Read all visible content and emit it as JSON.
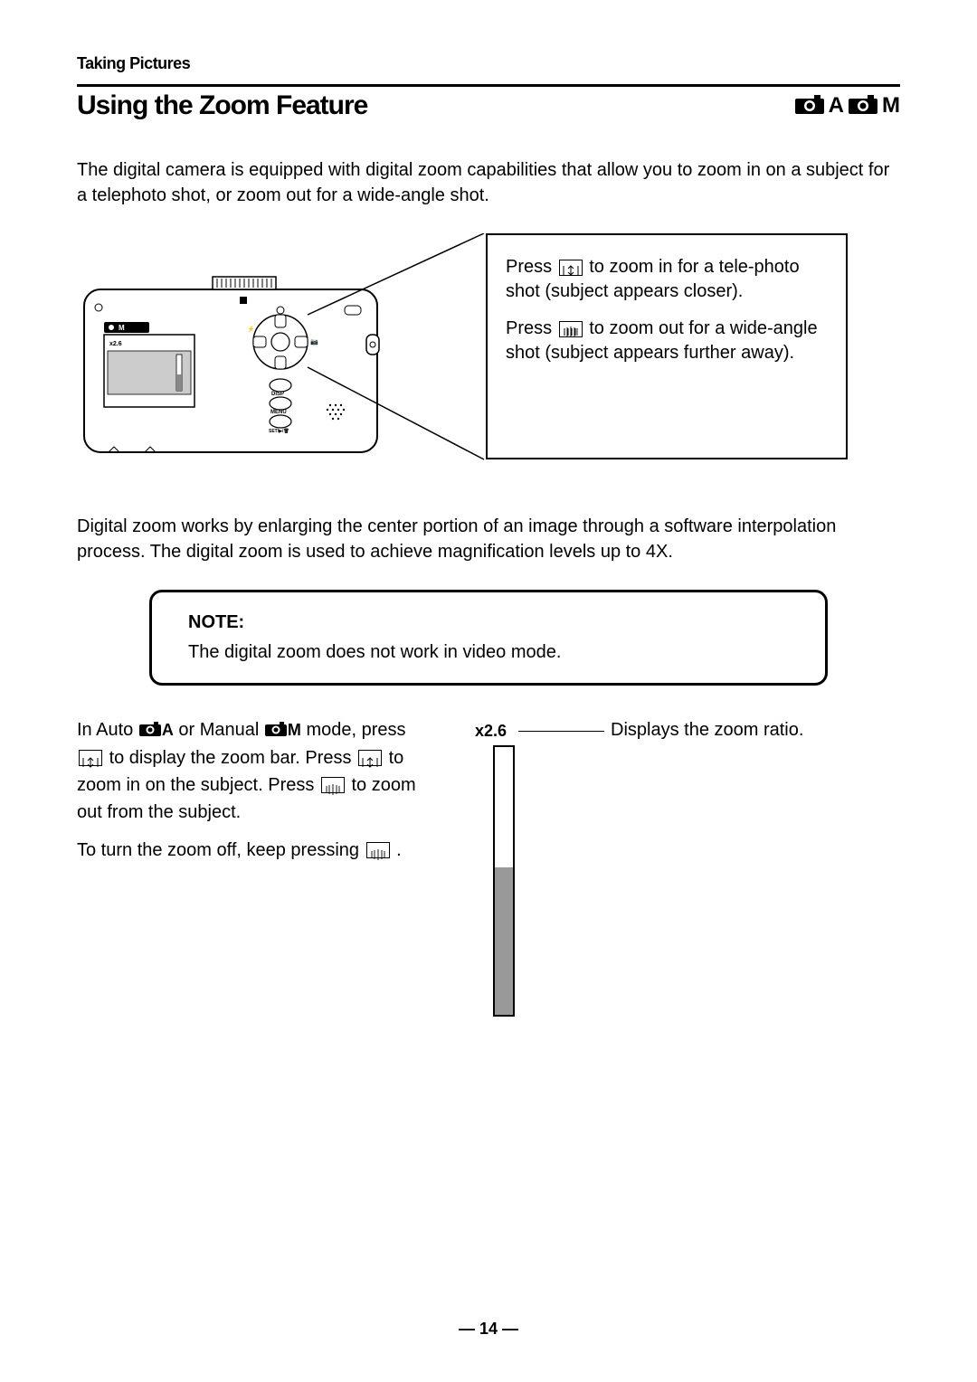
{
  "section_label": "Taking Pictures",
  "title": "Using the Zoom Feature",
  "modes": {
    "a": "A",
    "m": "M"
  },
  "intro": "The digital camera is equipped with digital zoom capabilities that allow you to zoom in on a subject for a telephoto shot, or zoom out for a wide-angle shot.",
  "callout": {
    "p1_a": "Press ",
    "p1_b": " to zoom in for a tele-photo shot (subject appears closer).",
    "p2_a": "Press ",
    "p2_b": " to zoom out for a wide-angle shot (subject appears further away)."
  },
  "mid_para": "Digital zoom works by enlarging the center portion of an image through a software interpolation process. The digital zoom is used to achieve magnification levels up to 4X.",
  "note": {
    "label": "NOTE:",
    "text": "The digital zoom does not work in video mode."
  },
  "lower": {
    "p1_a": "In Auto ",
    "p1_b": " or Manual ",
    "p1_c": " mode, press ",
    "p1_d": " to display the zoom bar.  Press ",
    "p1_e": " to zoom in on the subject. Press ",
    "p1_f": " to zoom out from the subject.",
    "p2_a": "To turn the zoom off, keep pressing ",
    "p2_b": " ."
  },
  "zoom": {
    "ratio_label": "x2.6",
    "desc": "Displays the zoom ratio.",
    "fill_percent": 55
  },
  "page_number": "— 14 —",
  "colors": {
    "text": "#000000",
    "bar_fill": "#999999",
    "bg": "#ffffff"
  }
}
